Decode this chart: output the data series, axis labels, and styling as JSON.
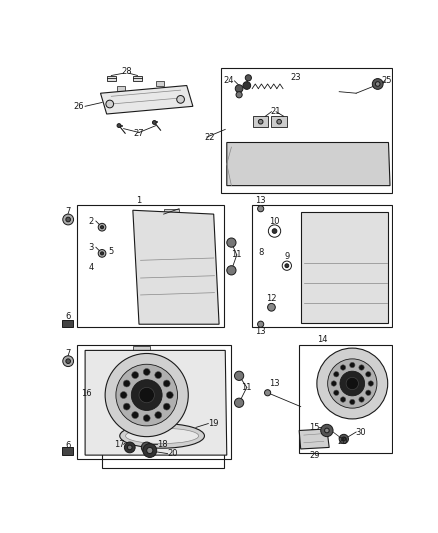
{
  "bg_color": "#ffffff",
  "fig_width": 4.38,
  "fig_height": 5.33,
  "dpi": 100,
  "label_fs": 6.0,
  "black": "#1a1a1a",
  "gray": "#888888",
  "light_gray": "#cccccc",
  "dark_gray": "#444444"
}
